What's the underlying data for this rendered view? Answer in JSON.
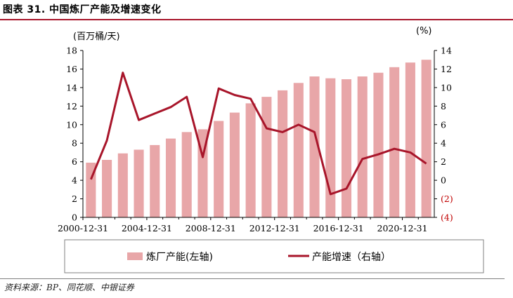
{
  "figure_title": "图表 31. 中国炼厂产能及增速变化",
  "source": "资料来源：BP、同花顺、中银证券",
  "colors": {
    "bar": "#e8a6a8",
    "line": "#a8152a",
    "title_rule": "#a8152a",
    "negative_label": "#c00000"
  },
  "chart_data": {
    "type": "bar",
    "x_tick_labels": [
      "2000-12-31",
      "2004-12-31",
      "2008-12-31",
      "2012-12-31",
      "2016-12-31",
      "2020-12-31"
    ],
    "left_axis": {
      "unit": "(百万桶/天)",
      "range": [
        0,
        18
      ],
      "ticks": [
        "0",
        "2",
        "4",
        "6",
        "8",
        "10",
        "12",
        "14",
        "16",
        "18"
      ]
    },
    "right_axis": {
      "unit": "(%)",
      "range": [
        -4,
        14
      ],
      "ticks": [
        "(4)",
        "(2)",
        "0",
        "2",
        "4",
        "6",
        "8",
        "10",
        "12",
        "14"
      ]
    },
    "grid": false,
    "legend_position": "bottom",
    "series": [
      {
        "name": "炼厂产能(左轴)",
        "type": "bar",
        "axis": "left",
        "values": [
          5.9,
          6.2,
          6.9,
          7.3,
          7.8,
          8.5,
          9.2,
          9.5,
          10.4,
          11.3,
          12.3,
          13.0,
          13.7,
          14.5,
          15.2,
          15.0,
          14.9,
          15.2,
          15.6,
          16.2,
          16.7,
          17.0
        ]
      },
      {
        "name": "产能增速（右轴）",
        "type": "line",
        "axis": "right",
        "values": [
          0.1,
          4.3,
          11.6,
          6.5,
          7.2,
          7.9,
          9.0,
          2.5,
          9.9,
          9.2,
          8.8,
          5.6,
          5.2,
          6.0,
          5.2,
          -1.5,
          -0.9,
          2.3,
          2.8,
          3.4,
          3.0,
          1.8
        ]
      }
    ]
  }
}
